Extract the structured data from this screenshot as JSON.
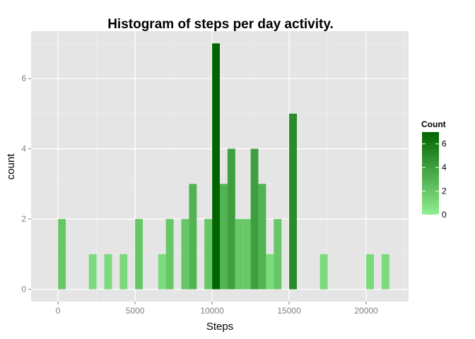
{
  "chart_data": {
    "type": "bar",
    "title": "Histogram of steps per day activity.",
    "xlabel": "Steps",
    "ylabel": "count",
    "xlim": [
      -1750,
      22750
    ],
    "ylim": [
      -0.35,
      7.35
    ],
    "bin_width": 500,
    "x_ticks": [
      0,
      5000,
      10000,
      15000,
      20000
    ],
    "x_tick_labels": [
      "0",
      "5000",
      "10000",
      "15000",
      "20000"
    ],
    "y_ticks": [
      0,
      2,
      4,
      6
    ],
    "y_tick_labels": [
      "0",
      "2",
      "4",
      "6"
    ],
    "grid": true,
    "bins": [
      {
        "x": 250,
        "count": 2
      },
      {
        "x": 2250,
        "count": 1
      },
      {
        "x": 3250,
        "count": 1
      },
      {
        "x": 4250,
        "count": 1
      },
      {
        "x": 5250,
        "count": 2
      },
      {
        "x": 6750,
        "count": 1
      },
      {
        "x": 7250,
        "count": 2
      },
      {
        "x": 8250,
        "count": 2
      },
      {
        "x": 8750,
        "count": 3
      },
      {
        "x": 9750,
        "count": 2
      },
      {
        "x": 10250,
        "count": 7
      },
      {
        "x": 10750,
        "count": 3
      },
      {
        "x": 11250,
        "count": 4
      },
      {
        "x": 11750,
        "count": 2
      },
      {
        "x": 12250,
        "count": 2
      },
      {
        "x": 12750,
        "count": 4
      },
      {
        "x": 13250,
        "count": 3
      },
      {
        "x": 13750,
        "count": 1
      },
      {
        "x": 14250,
        "count": 2
      },
      {
        "x": 15250,
        "count": 5
      },
      {
        "x": 17250,
        "count": 1
      },
      {
        "x": 20250,
        "count": 1
      },
      {
        "x": 21250,
        "count": 1
      }
    ],
    "legend": {
      "title": "Count",
      "placement": "right",
      "range": [
        0,
        7
      ],
      "ticks": [
        0,
        2,
        4,
        6
      ],
      "tick_labels": [
        "0",
        "2",
        "4",
        "6"
      ],
      "low_color": "#90ee90",
      "high_color": "#006400"
    },
    "colors": {
      "panel_background": "#e5e5e5",
      "grid_major": "#ffffff",
      "grid_minor": "#f2f2f2"
    }
  }
}
